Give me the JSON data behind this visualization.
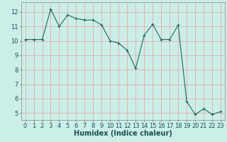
{
  "x": [
    0,
    1,
    2,
    3,
    4,
    5,
    6,
    7,
    8,
    9,
    10,
    11,
    12,
    13,
    14,
    15,
    16,
    17,
    18,
    19,
    20,
    21,
    22,
    23
  ],
  "y": [
    10.1,
    10.1,
    10.1,
    12.2,
    11.0,
    11.8,
    11.55,
    11.45,
    11.45,
    11.1,
    10.0,
    9.85,
    9.35,
    8.1,
    10.4,
    11.15,
    10.1,
    10.1,
    11.1,
    5.8,
    4.9,
    5.3,
    4.9,
    5.1
  ],
  "xlabel": "Humidex (Indice chaleur)",
  "xlim": [
    -0.5,
    23.5
  ],
  "ylim": [
    4.5,
    12.7
  ],
  "yticks": [
    5,
    6,
    7,
    8,
    9,
    10,
    11,
    12
  ],
  "xticks": [
    0,
    1,
    2,
    3,
    4,
    5,
    6,
    7,
    8,
    9,
    10,
    11,
    12,
    13,
    14,
    15,
    16,
    17,
    18,
    19,
    20,
    21,
    22,
    23
  ],
  "line_color": "#1a6b5a",
  "marker": "+",
  "bg_color": "#cceee8",
  "grid_color": "#e8a0a0",
  "label_fontsize": 7,
  "tick_fontsize": 6
}
